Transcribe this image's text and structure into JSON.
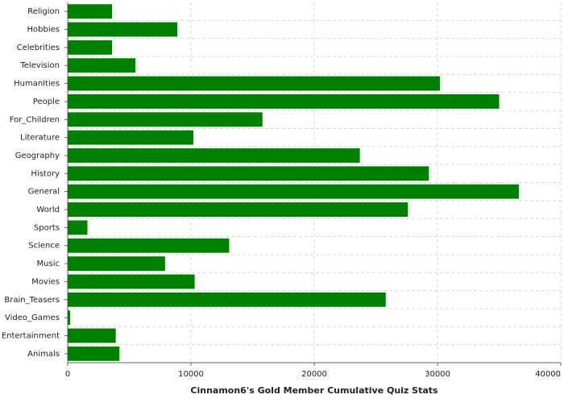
{
  "chart_data": {
    "type": "bar",
    "orientation": "horizontal",
    "x_label": "Cinnamon6's Gold Member Cumulative Quiz Stats",
    "categories": [
      "Religion",
      "Hobbies",
      "Celebrities",
      "Television",
      "Humanities",
      "People",
      "For_Children",
      "Literature",
      "Geography",
      "History",
      "General",
      "World",
      "Sports",
      "Science",
      "Music",
      "Movies",
      "Brain_Teasers",
      "Video_Games",
      "Entertainment",
      "Animals"
    ],
    "values": [
      3600,
      8900,
      3600,
      5500,
      30200,
      35000,
      15800,
      10200,
      23700,
      29300,
      36600,
      27600,
      1600,
      13100,
      7900,
      10300,
      25800,
      200,
      3900,
      4200
    ],
    "color": "#008000",
    "xlim": [
      0,
      40000
    ],
    "xticks": [
      0,
      10000,
      20000,
      30000,
      40000
    ],
    "grid": true
  }
}
